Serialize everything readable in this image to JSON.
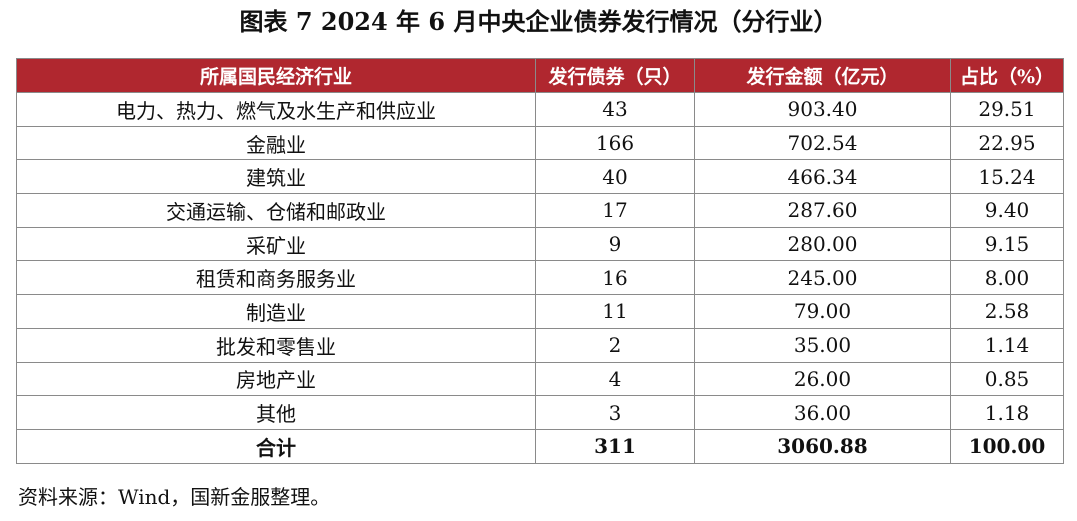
{
  "title": "图表 7  2024 年 6 月中央企业债券发行情况（分行业）",
  "table": {
    "headers": [
      "所属国民经济行业",
      "发行债券（只）",
      "发行金额（亿元）",
      "占比（%）"
    ],
    "rows": [
      [
        "电力、热力、燃气及水生产和供应业",
        "43",
        "903.40",
        "29.51"
      ],
      [
        "金融业",
        "166",
        "702.54",
        "22.95"
      ],
      [
        "建筑业",
        "40",
        "466.34",
        "15.24"
      ],
      [
        "交通运输、仓储和邮政业",
        "17",
        "287.60",
        "9.40"
      ],
      [
        "采矿业",
        "9",
        "280.00",
        "9.15"
      ],
      [
        "租赁和商务服务业",
        "16",
        "245.00",
        "8.00"
      ],
      [
        "制造业",
        "11",
        "79.00",
        "2.58"
      ],
      [
        "批发和零售业",
        "2",
        "35.00",
        "1.14"
      ],
      [
        "房地产业",
        "4",
        "26.00",
        "0.85"
      ],
      [
        "其他",
        "3",
        "36.00",
        "1.18"
      ]
    ],
    "total": [
      "合计",
      "311",
      "3060.88",
      "100.00"
    ]
  },
  "source": "资料来源：Wind，国新金服整理。",
  "colors": {
    "header_bg": "#b0272f",
    "header_text": "#ffffff",
    "border": "#8a8a8a"
  }
}
